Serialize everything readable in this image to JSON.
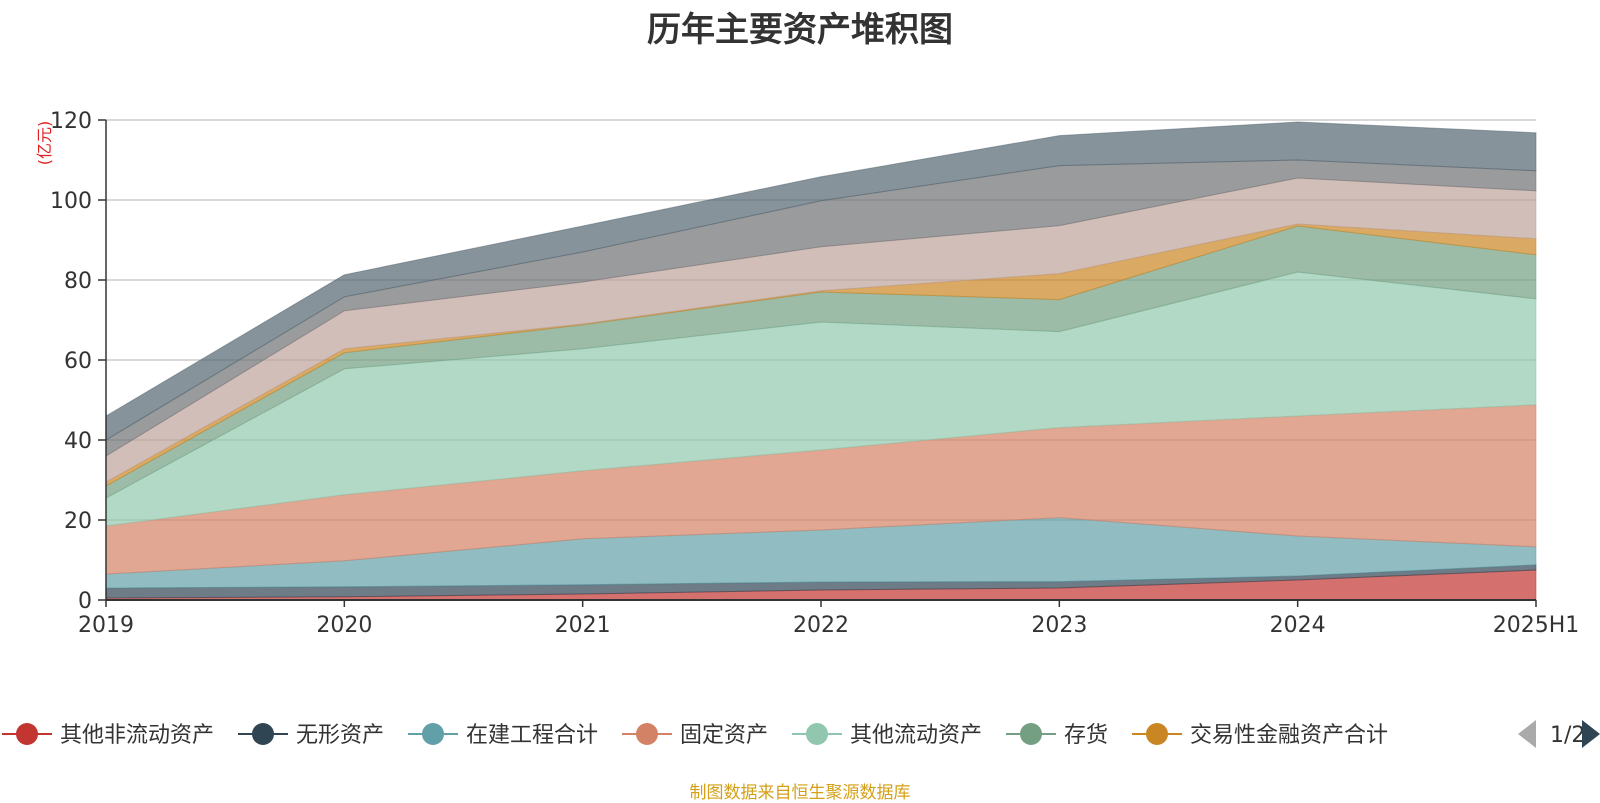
{
  "chart_data": {
    "type": "area",
    "title": "历年主要资产堆积图",
    "unit_label": "(亿元)",
    "source_note": "制图数据来自恒生聚源数据库",
    "categories": [
      "2019",
      "2020",
      "2021",
      "2022",
      "2023",
      "2024",
      "2025H1"
    ],
    "ylim": [
      0,
      120
    ],
    "yticks": [
      "0",
      "20",
      "40",
      "60",
      "80",
      "100",
      "120"
    ],
    "grid": true,
    "stacked": true,
    "legend_page": "1/2",
    "series": [
      {
        "name": "其他非流动资产",
        "color": "#c23531",
        "in_legend": true,
        "values": [
          0.5,
          0.8,
          1.5,
          2.5,
          3.0,
          5.0,
          7.5
        ]
      },
      {
        "name": "无形资产",
        "color": "#2f4554",
        "in_legend": true,
        "values": [
          2.5,
          2.5,
          2.3,
          2.0,
          1.6,
          1.0,
          1.3
        ]
      },
      {
        "name": "在建工程合计",
        "color": "#61a0a8",
        "in_legend": true,
        "values": [
          3.5,
          6.5,
          11.5,
          13.0,
          16.0,
          10.0,
          4.5
        ]
      },
      {
        "name": "固定资产",
        "color": "#d48265",
        "in_legend": true,
        "values": [
          12.0,
          16.5,
          17.0,
          20.0,
          22.5,
          30.0,
          35.5
        ]
      },
      {
        "name": "其他流动资产",
        "color": "#91c7ae",
        "in_legend": true,
        "values": [
          7.0,
          31.5,
          30.5,
          32.0,
          24.0,
          36.0,
          26.5
        ]
      },
      {
        "name": "存货",
        "color": "#749f83",
        "in_legend": true,
        "values": [
          3.0,
          4.0,
          6.0,
          7.5,
          8.0,
          11.5,
          11.0
        ]
      },
      {
        "name": "交易性金融资产合计",
        "color": "#ca8622",
        "in_legend": true,
        "values": [
          1.0,
          1.0,
          0.2,
          0.3,
          6.5,
          0.5,
          4.0
        ]
      },
      {
        "name": "",
        "color": "#bda29a",
        "in_legend": false,
        "values": [
          6.5,
          9.5,
          10.5,
          11.0,
          12.0,
          11.5,
          12.0
        ]
      },
      {
        "name": "",
        "color": "#6e7074",
        "in_legend": false,
        "values": [
          4.0,
          3.5,
          7.5,
          11.5,
          15.0,
          4.5,
          5.0
        ]
      },
      {
        "name": "",
        "color": "#546570",
        "in_legend": false,
        "values": [
          6.0,
          5.5,
          6.5,
          6.0,
          7.5,
          9.5,
          9.5
        ]
      }
    ]
  }
}
